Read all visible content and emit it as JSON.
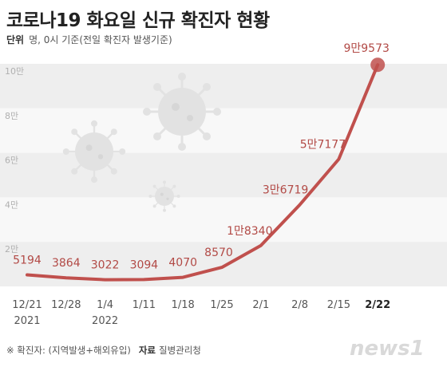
{
  "header": {
    "title": "코로나19 화요일 신규 확진자 현황",
    "unit_label": "단위",
    "unit_text": "명, 0시 기준(전일 확진자 발생기준)"
  },
  "footer": {
    "note": "※ 확진자: (지역발생+해외유입)",
    "source_label": "자료",
    "source_value": "질병관리청",
    "brand": "news1"
  },
  "colors": {
    "line": "#c0504d",
    "value_label": "#b24a46",
    "band_dark": "#eeeeee",
    "band_light": "#f8f8f8",
    "highlight": "#c0504d"
  },
  "chart_data": {
    "type": "line",
    "categories": [
      "12/21\n2021",
      "12/28",
      "1/4\n2022",
      "1/11",
      "1/18",
      "1/25",
      "2/1",
      "2/8",
      "2/15",
      "2/22"
    ],
    "values": [
      5194,
      3864,
      3022,
      3094,
      4070,
      8570,
      18340,
      36719,
      57177,
      99573
    ],
    "value_labels": [
      "5194",
      "3864",
      "3022",
      "3094",
      "4070",
      "8570",
      "1만8340",
      "3만6719",
      "5만7177",
      "9만9573"
    ],
    "y_ticks": [
      {
        "value": 20000,
        "label": "2만"
      },
      {
        "value": 40000,
        "label": "4만"
      },
      {
        "value": 60000,
        "label": "6만"
      },
      {
        "value": 80000,
        "label": "8만"
      },
      {
        "value": 100000,
        "label": "10만"
      }
    ],
    "ylim": [
      0,
      100000
    ],
    "highlight_index": 9
  }
}
